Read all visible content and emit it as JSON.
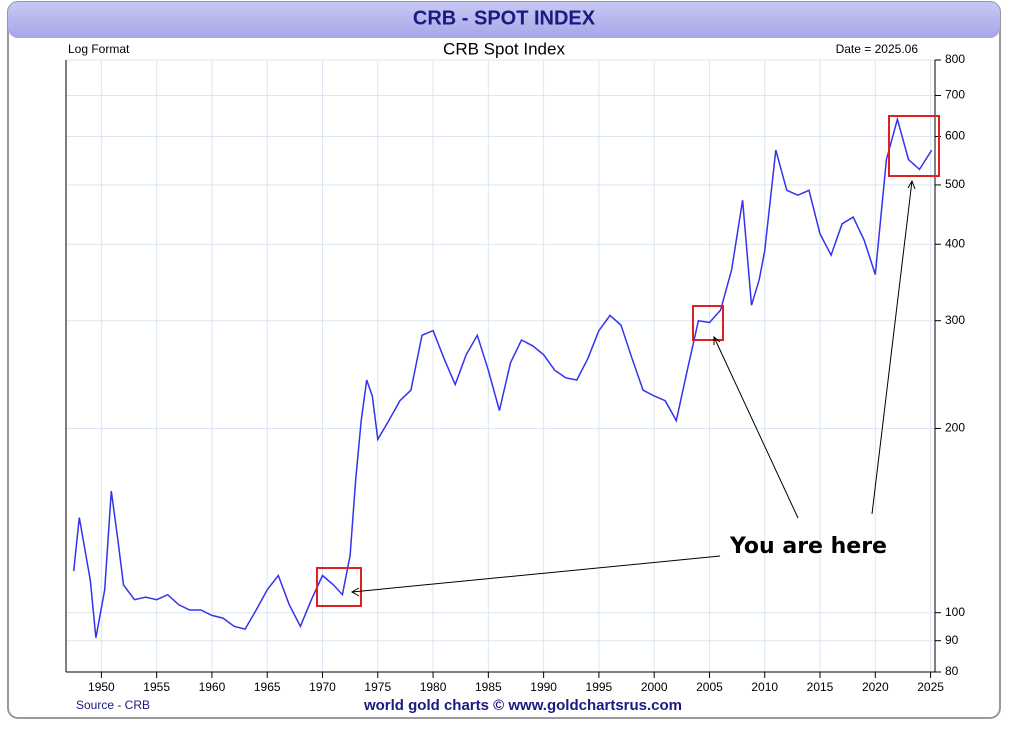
{
  "header": {
    "title": "CRB - SPOT INDEX"
  },
  "chart_data": {
    "type": "line",
    "title": "CRB Spot Index",
    "annotations": {
      "scale_note": "Log Format",
      "date_note": "Date = 2025.06",
      "pointer": "You are here"
    },
    "source": "Source - CRB",
    "credit": "world gold charts © www.goldchartsrus.com",
    "color": "#3333ee",
    "log_scale": true,
    "grid": true,
    "x": [
      1947.5,
      1948,
      1949,
      1949.5,
      1950.3,
      1950.9,
      1951.5,
      1952,
      1953,
      1954,
      1955,
      1956,
      1957,
      1958,
      1959,
      1960,
      1961,
      1962,
      1963,
      1964,
      1965,
      1966,
      1967,
      1968,
      1969,
      1970,
      1971,
      1971.8,
      1972.5,
      1973,
      1973.5,
      1974,
      1974.5,
      1975,
      1976,
      1977,
      1978,
      1979,
      1980,
      1981,
      1982,
      1983,
      1984,
      1985,
      1986,
      1987,
      1988,
      1989,
      1990,
      1991,
      1992,
      1993,
      1994,
      1995,
      1996,
      1997,
      1998,
      1999,
      2000,
      2001,
      2002,
      2003,
      2004,
      2005,
      2006,
      2007,
      2008,
      2008.8,
      2009.5,
      2010,
      2011,
      2012,
      2013,
      2014,
      2015,
      2016,
      2017,
      2018,
      2019,
      2020,
      2021,
      2022,
      2023,
      2024,
      2025.1
    ],
    "values": [
      117,
      143,
      113,
      91,
      109,
      158,
      131,
      111,
      105,
      106,
      105,
      107,
      103,
      101,
      101,
      99,
      98,
      95,
      94,
      101,
      109,
      115,
      103,
      95,
      105,
      115,
      111,
      107,
      124,
      165,
      206,
      240,
      226,
      192,
      206,
      222,
      231,
      284,
      289,
      260,
      236,
      264,
      284,
      249,
      214,
      256,
      279,
      273,
      264,
      249,
      242,
      240,
      260,
      289,
      306,
      295,
      260,
      231,
      226,
      222,
      206,
      249,
      300,
      298,
      312,
      363,
      472,
      318,
      350,
      390,
      570,
      490,
      481,
      490,
      416,
      384,
      432,
      443,
      406,
      357,
      550,
      640,
      550,
      530,
      570
    ],
    "xlim": [
      1946.8,
      2025.4
    ],
    "xticks": [
      1950,
      1955,
      1960,
      1965,
      1970,
      1975,
      1980,
      1985,
      1990,
      1995,
      2000,
      2005,
      2010,
      2015,
      2020,
      2025
    ],
    "ylim": [
      80,
      800
    ],
    "yticks": [
      80,
      90,
      100,
      200,
      300,
      400,
      500,
      600,
      700,
      800
    ]
  }
}
